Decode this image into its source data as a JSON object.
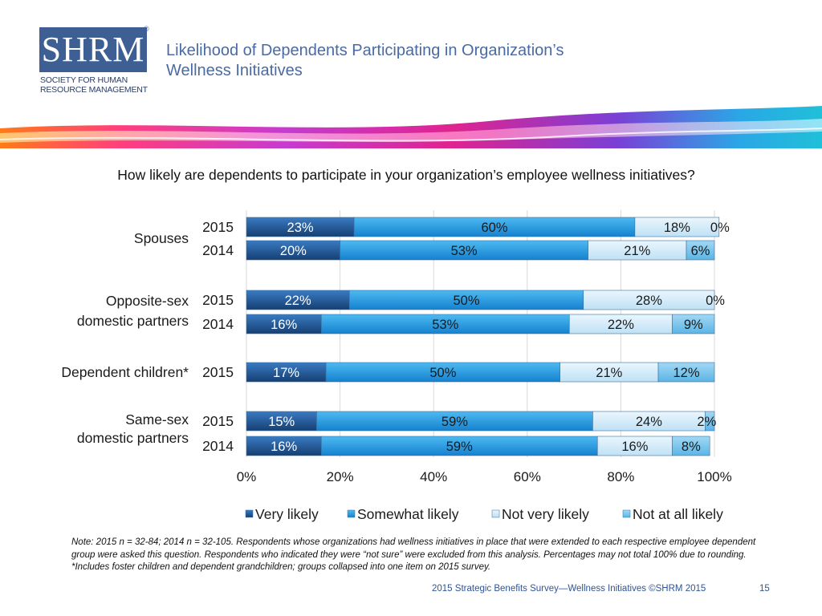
{
  "logo": {
    "mark": "SHRM",
    "registered": "®",
    "subtitle_line1": "Society for Human",
    "subtitle_line2": "Resource Management"
  },
  "slide": {
    "title_line1": "Likelihood of Dependents Participating in Organization’s",
    "title_line2": "Wellness Initiatives",
    "question": "How likely are dependents to participate in your organization’s employee wellness initiatives?",
    "note": "Note: 2015 n = 32-84; 2014 n = 32-105. Respondents whose organizations had wellness initiatives in place that were extended to each respective employee dependent group were asked this question. Respondents who indicated they were “not sure” were excluded from this analysis. Percentages may not total 100% due to rounding. *Includes foster children and dependent grandchildren; groups collapsed into one item on 2015 survey.",
    "footer": "2015 Strategic Benefits Survey—Wellness Initiatives ©SHRM 2015",
    "page_number": "15"
  },
  "colors": {
    "title": "#4a6aa3",
    "logo": "#3d5f93",
    "very_likely": "#1f5fa0",
    "somewhat_likely": "#1fa0e6",
    "not_very_likely": "#cfe9f8",
    "not_at_all_likely": "#7cc6ee"
  },
  "chart_data": {
    "type": "bar",
    "orientation": "horizontal",
    "stacked": true,
    "xlim": [
      0,
      100
    ],
    "x_ticks": [
      "0%",
      "20%",
      "40%",
      "60%",
      "80%",
      "100%"
    ],
    "grid": true,
    "legend_position": "bottom",
    "groups": [
      {
        "label": "Spouses",
        "rows": [
          {
            "year": "2015",
            "values": [
              23,
              60,
              18,
              0
            ]
          },
          {
            "year": "2014",
            "values": [
              20,
              53,
              21,
              6
            ]
          }
        ]
      },
      {
        "label": "Opposite-sex domestic partners",
        "rows": [
          {
            "year": "2015",
            "values": [
              22,
              50,
              28,
              0
            ]
          },
          {
            "year": "2014",
            "values": [
              16,
              53,
              22,
              9
            ]
          }
        ]
      },
      {
        "label": "Dependent children*",
        "rows": [
          {
            "year": "2015",
            "values": [
              17,
              50,
              21,
              12
            ]
          }
        ]
      },
      {
        "label": "Same-sex domestic partners",
        "rows": [
          {
            "year": "2015",
            "values": [
              15,
              59,
              24,
              2
            ]
          },
          {
            "year": "2014",
            "values": [
              16,
              59,
              16,
              8
            ]
          }
        ]
      }
    ],
    "series": [
      {
        "name": "Very likely",
        "color": "#1f5fa0"
      },
      {
        "name": "Somewhat likely",
        "color": "#1fa0e6"
      },
      {
        "name": "Not very likely",
        "color": "#cfe9f8"
      },
      {
        "name": "Not at all likely",
        "color": "#7cc6ee"
      }
    ]
  }
}
